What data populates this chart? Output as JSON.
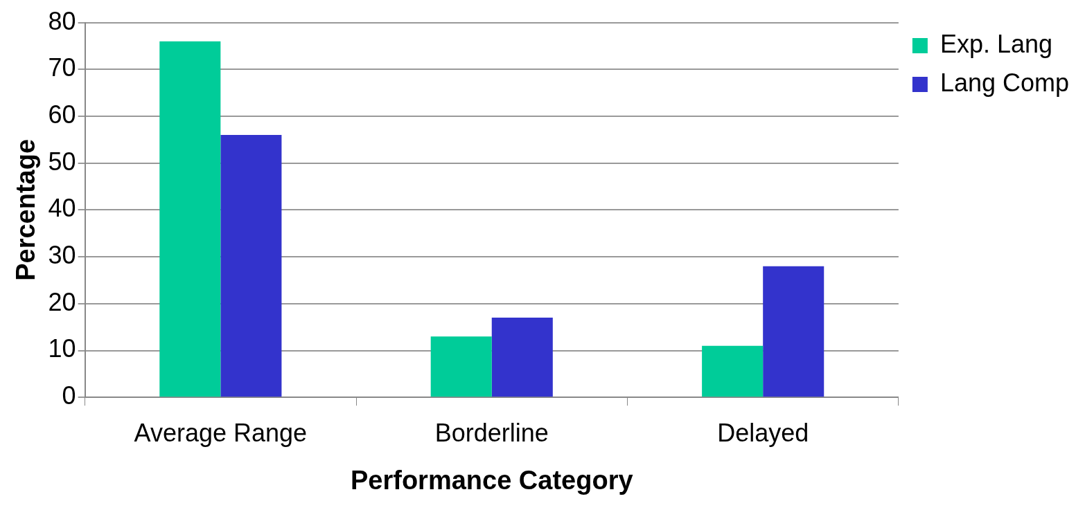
{
  "chart_data": {
    "type": "bar",
    "xlabel": "Performance Category",
    "ylabel": "Percentage",
    "categories": [
      "Average Range",
      "Borderline",
      "Delayed"
    ],
    "series": [
      {
        "name": "Exp. Lang",
        "color": "#00cc99",
        "values": [
          76,
          13,
          11
        ]
      },
      {
        "name": "Lang Comp",
        "color": "#3333cc",
        "values": [
          56,
          17,
          28
        ]
      }
    ],
    "ylim": [
      0,
      80
    ],
    "yticks": [
      0,
      10,
      20,
      30,
      40,
      50,
      60,
      70,
      80
    ],
    "grid": "y",
    "legend": "top right"
  }
}
